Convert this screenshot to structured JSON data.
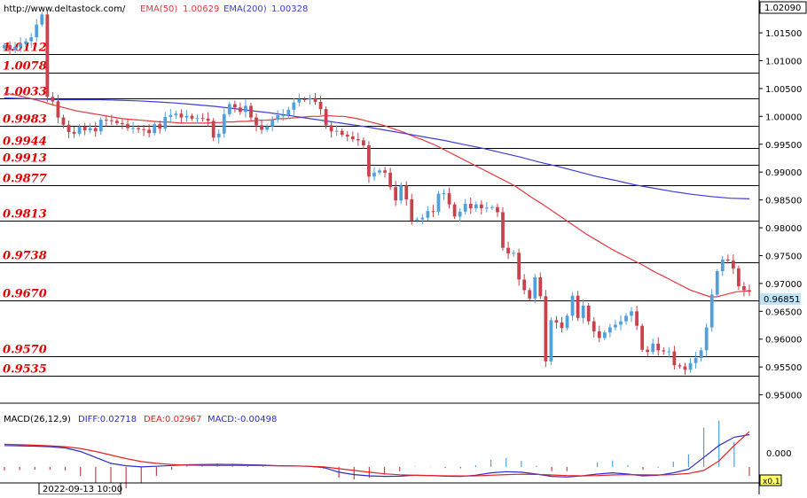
{
  "header": {
    "url": "http://www.deltastock.com/",
    "ema50_label": "EMA(50)",
    "ema50_value": "1.00629",
    "ema200_label": "EMA(200)",
    "ema200_value": "1.00328"
  },
  "colors": {
    "bull": "#4fa0dc",
    "bear": "#c8414b",
    "ema50": "#e8383c",
    "ema200": "#3c3cdc",
    "level_text": "#e00000",
    "grid": "#000000",
    "macd_diff": "#2b2bd6",
    "macd_dea": "#e82020",
    "price_badge": "#bfe4f7"
  },
  "price_axis": {
    "top_price": "1.02090",
    "ticks": [
      "1.01500",
      "1.01000",
      "1.00500",
      "1.00000",
      "0.99500",
      "0.99000",
      "0.98500",
      "0.98000",
      "0.97500",
      "0.97000",
      "0.96500",
      "0.96000",
      "0.95500",
      "0.95000"
    ],
    "current_price": "0.96851"
  },
  "levels": [
    {
      "value": 1.0112,
      "label": "1.0112"
    },
    {
      "value": 1.0078,
      "label": "1.0078"
    },
    {
      "value": 1.0033,
      "label": "1.0033"
    },
    {
      "value": 0.9983,
      "label": "0.9983"
    },
    {
      "value": 0.9944,
      "label": "0.9944"
    },
    {
      "value": 0.9913,
      "label": "0.9913"
    },
    {
      "value": 0.9877,
      "label": "0.9877"
    },
    {
      "value": 0.9813,
      "label": "0.9813"
    },
    {
      "value": 0.9738,
      "label": "0.9738"
    },
    {
      "value": 0.967,
      "label": "0.9670"
    },
    {
      "value": 0.957,
      "label": "0.9570"
    },
    {
      "value": 0.9535,
      "label": "0.9535"
    }
  ],
  "macd": {
    "title": "MACD(26,12,9)",
    "diff_label": "DIFF:0.02718",
    "dea_label": "DEA:0.02967",
    "macd_label": "MACD:-0.00498",
    "zero_tick": "0.000",
    "scale_badge": "x0.1"
  },
  "time_label": "2022-09-13 10:00",
  "chart_data": {
    "type": "candlestick",
    "title": "",
    "y_range": [
      0.9485,
      1.0209
    ],
    "closes": [
      1.0128,
      1.0119,
      1.0125,
      1.0131,
      1.0135,
      1.0142,
      1.0165,
      1.0183,
      1.0035,
      1.0027,
      0.9998,
      0.9985,
      0.9972,
      0.9969,
      0.9982,
      0.9975,
      0.9979,
      0.9973,
      0.9994,
      0.9993,
      0.9992,
      0.9988,
      0.9986,
      0.9979,
      0.9979,
      0.9977,
      0.9976,
      0.997,
      0.9986,
      0.9978,
      0.9999,
      1.0002,
      1.0005,
      0.9998,
      1.0001,
      0.9996,
      0.9997,
      0.9996,
      0.9992,
      0.9962,
      0.9969,
      1.0004,
      1.0022,
      1.0016,
      1.0008,
      1.0019,
      0.9998,
      0.9984,
      0.9976,
      0.9982,
      0.9994,
      1.0002,
      1.0002,
      1.0012,
      1.0025,
      1.0031,
      1.003,
      1.0033,
      1.0026,
      1.0013,
      0.9984,
      0.9973,
      0.9974,
      0.9967,
      0.9964,
      0.9959,
      0.9957,
      0.9948,
      0.9892,
      0.9899,
      0.9903,
      0.9899,
      0.9873,
      0.9849,
      0.9876,
      0.9851,
      0.9813,
      0.9815,
      0.9818,
      0.983,
      0.9829,
      0.9861,
      0.9862,
      0.9842,
      0.982,
      0.9829,
      0.9843,
      0.9835,
      0.9842,
      0.9835,
      0.9836,
      0.9837,
      0.9828,
      0.9764,
      0.9754,
      0.9755,
      0.9707,
      0.9688,
      0.9673,
      0.9711,
      0.9677,
      0.956,
      0.9634,
      0.963,
      0.962,
      0.9642,
      0.9678,
      0.9638,
      0.966,
      0.9632,
      0.9614,
      0.9602,
      0.9612,
      0.9621,
      0.9626,
      0.9632,
      0.9642,
      0.965,
      0.9624,
      0.9581,
      0.9577,
      0.9592,
      0.958,
      0.9578,
      0.9578,
      0.9553,
      0.9551,
      0.9545,
      0.9557,
      0.9566,
      0.958,
      0.9621,
      0.968,
      0.9722,
      0.9743,
      0.9741,
      0.9727,
      0.9695,
      0.9688,
      0.9685
    ],
    "ema50": [
      1.0041,
      1.004,
      1.0038,
      1.0035,
      1.0032,
      1.0029,
      1.0026,
      1.0022,
      1.0019,
      1.0016,
      1.0013,
      1.001,
      1.0008,
      1.0006,
      1.0004,
      1.0002,
      1.0,
      0.9998,
      0.9996,
      0.9995,
      0.9994,
      0.9993,
      0.9992,
      0.9991,
      0.999,
      0.999,
      0.9989,
      0.9988,
      0.9988,
      0.9988,
      0.9988,
      0.9988,
      0.9989,
      0.9989,
      0.999,
      0.999,
      0.9991,
      0.9991,
      0.9992,
      0.9993,
      0.9993,
      0.9994,
      0.9996,
      0.9996,
      0.9997,
      0.9998,
      0.9999,
      1.0,
      1.0,
      1.0001,
      1.0001,
      1.0,
      1.0,
      0.9998,
      0.9996,
      0.9993,
      0.999,
      0.9987,
      0.9984,
      0.998,
      0.9976,
      0.9972,
      0.9967,
      0.9962,
      0.9958,
      0.9953,
      0.9948,
      0.9942,
      0.9936,
      0.993,
      0.9924,
      0.9918,
      0.9912,
      0.9906,
      0.99,
      0.9894,
      0.9888,
      0.9882,
      0.9876,
      0.9868,
      0.986,
      0.9852,
      0.9845,
      0.9837,
      0.9829,
      0.9821,
      0.9813,
      0.9805,
      0.9797,
      0.9789,
      0.9782,
      0.9775,
      0.9768,
      0.9761,
      0.9755,
      0.9749,
      0.9743,
      0.9737,
      0.9731,
      0.9724,
      0.9718,
      0.9712,
      0.9706,
      0.97,
      0.9694,
      0.9688,
      0.9684,
      0.968,
      0.9676,
      0.9676,
      0.9679,
      0.9682,
      0.9685,
      0.9686,
      0.9687
    ],
    "ema200": [
      1.0033,
      1.0032,
      1.0031,
      1.003,
      1.003,
      1.003,
      1.0029,
      1.0028,
      1.0026,
      1.0024,
      1.0021,
      1.0018,
      1.0014,
      1.001,
      1.0006,
      1.0001,
      0.9996,
      0.9991,
      0.9986,
      0.9981,
      0.9975,
      0.9969,
      0.9963,
      0.9957,
      0.995,
      0.9943,
      0.9935,
      0.9927,
      0.9918,
      0.991,
      0.9901,
      0.9892,
      0.9885,
      0.9877,
      0.9871,
      0.9865,
      0.986,
      0.9856,
      0.9853,
      0.9852
    ],
    "macd_diff": [
      0.018,
      0.0178,
      0.0175,
      0.017,
      0.016,
      0.013,
      0.008,
      0.003,
      0.001,
      0.0,
      0.0005,
      0.0012,
      0.0018,
      0.002,
      0.0022,
      0.0021,
      0.0018,
      0.0015,
      0.001,
      0.0008,
      0.0005,
      -0.0005,
      -0.0045,
      -0.0065,
      -0.0075,
      -0.008,
      -0.0078,
      -0.007,
      -0.0072,
      -0.0078,
      -0.008,
      -0.007,
      -0.005,
      -0.004,
      -0.0045,
      -0.006,
      -0.008,
      -0.0085,
      -0.0075,
      -0.006,
      -0.005,
      -0.006,
      -0.0075,
      -0.007,
      -0.005,
      -0.002,
      0.008,
      0.018,
      0.025,
      0.0272
    ],
    "macd_dea": [
      0.019,
      0.0187,
      0.0183,
      0.0178,
      0.017,
      0.0155,
      0.013,
      0.01,
      0.007,
      0.0045,
      0.003,
      0.002,
      0.0015,
      0.0013,
      0.0012,
      0.0012,
      0.0012,
      0.0011,
      0.001,
      0.0008,
      0.0005,
      0.0,
      -0.0015,
      -0.003,
      -0.0045,
      -0.0058,
      -0.0066,
      -0.0071,
      -0.0073,
      -0.0075,
      -0.0076,
      -0.0075,
      -0.007,
      -0.0065,
      -0.0062,
      -0.0063,
      -0.0068,
      -0.0073,
      -0.0075,
      -0.0073,
      -0.0068,
      -0.0065,
      -0.0067,
      -0.0068,
      -0.0065,
      -0.0055,
      -0.003,
      0.005,
      0.018,
      0.0297
    ]
  }
}
